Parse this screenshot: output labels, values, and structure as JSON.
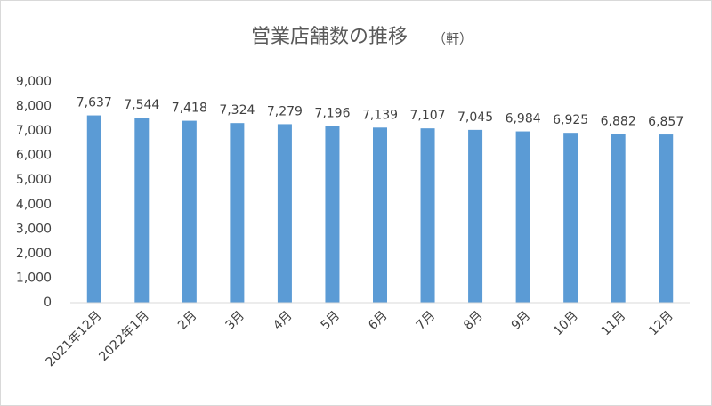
{
  "chart_data": {
    "type": "bar",
    "title": "営業店舗数の推移",
    "unit": "（軒）",
    "categories": [
      "2021年12月",
      "2022年1月",
      "2月",
      "3月",
      "4月",
      "5月",
      "6月",
      "7月",
      "8月",
      "9月",
      "10月",
      "11月",
      "12月"
    ],
    "values": [
      7637,
      7544,
      7418,
      7324,
      7279,
      7196,
      7139,
      7107,
      7045,
      6984,
      6925,
      6882,
      6857
    ],
    "value_labels": [
      "7,637",
      "7,544",
      "7,418",
      "7,324",
      "7,279",
      "7,196",
      "7,139",
      "7,107",
      "7,045",
      "6,984",
      "6,925",
      "6,882",
      "6,857"
    ],
    "color": "#5b9bd5",
    "ylim": [
      0,
      9000
    ],
    "yticks": [
      0,
      {
        "value": 1000,
        "label": "1,000"
      },
      {
        "value": 2000,
        "label": "2,000"
      },
      {
        "value": 3000,
        "label": "3,000"
      },
      {
        "value": 4000,
        "label": "4,000"
      },
      {
        "value": 5000,
        "label": "5,000"
      },
      {
        "value": 6000,
        "label": "6,000"
      },
      {
        "value": 7000,
        "label": "7,000"
      },
      {
        "value": 8000,
        "label": "8,000"
      },
      {
        "value": 9000,
        "label": "9,000"
      }
    ],
    "grid": false
  }
}
